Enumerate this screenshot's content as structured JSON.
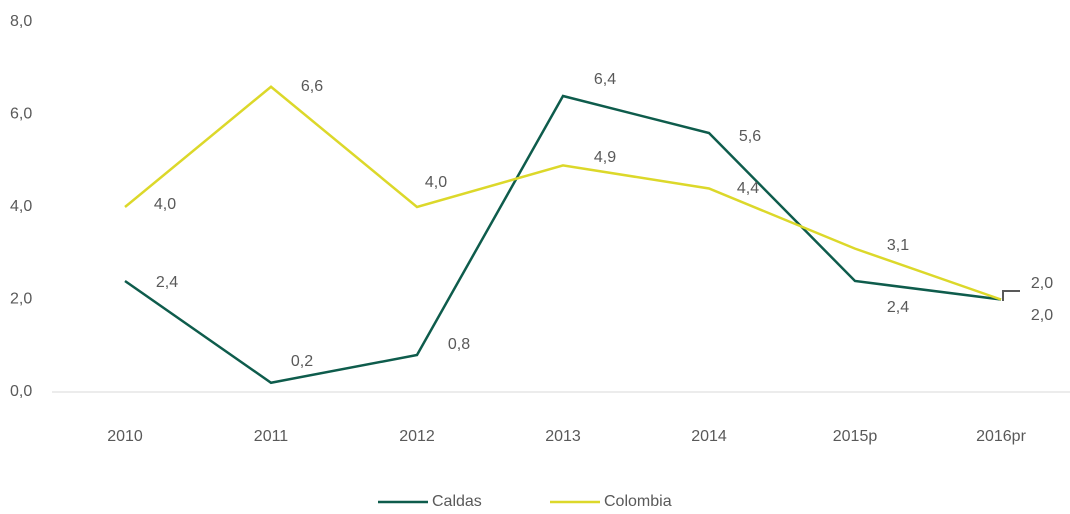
{
  "chart_data": {
    "type": "line",
    "categories": [
      "2010",
      "2011",
      "2012",
      "2013",
      "2014",
      "2015p",
      "2016pr"
    ],
    "series": [
      {
        "name": "Caldas",
        "color": "#0e5c4c",
        "values": [
          2.4,
          0.2,
          0.8,
          6.4,
          5.6,
          2.4,
          2.0
        ],
        "value_labels": [
          "2,4",
          "0,2",
          "0,8",
          "6,4",
          "5,6",
          "2,4",
          "2,0"
        ]
      },
      {
        "name": "Colombia",
        "color": "#dcd82a",
        "values": [
          4.0,
          6.6,
          4.0,
          4.9,
          4.4,
          3.1,
          2.0
        ],
        "value_labels": [
          "4,0",
          "6,6",
          "4,0",
          "4,9",
          "4,4",
          "3,1",
          "2,0"
        ]
      }
    ],
    "ylim": [
      0,
      8
    ],
    "yticks": [
      {
        "value": 0,
        "label": "0,0"
      },
      {
        "value": 2,
        "label": "2,0"
      },
      {
        "value": 4,
        "label": "4,0"
      },
      {
        "value": 6,
        "label": "6,0"
      },
      {
        "value": 8,
        "label": "8,0"
      }
    ],
    "legend": "bottom"
  }
}
